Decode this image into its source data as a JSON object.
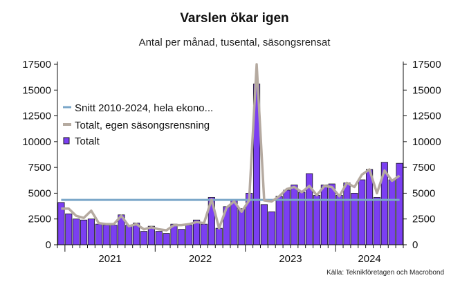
{
  "chart_data": {
    "type": "bar",
    "title": "Varslen ökar igen",
    "subtitle": "Antal per månad, tusental, säsongsrensat",
    "source": "Källa: Teknikföretagen och Macrobond",
    "ylim": [
      0,
      17500
    ],
    "yticks": [
      0,
      2500,
      5000,
      7500,
      10000,
      12500,
      15000,
      17500
    ],
    "ytick_labels": [
      "0",
      "2500",
      "5000",
      "7500",
      "10000",
      "12500",
      "15000",
      "17500"
    ],
    "year_labels": [
      "2021",
      "2022",
      "2023",
      "2024"
    ],
    "years": [
      2021,
      2022,
      2023,
      2024
    ],
    "start": "2020-12",
    "legend": {
      "position": "top-left"
    },
    "colors": {
      "bar": "#7b3ff2",
      "bar_border": "#1a1a1a",
      "average": "#7ba7c9",
      "total_line": "#b5aaa0"
    },
    "series": [
      {
        "name": "Snitt 2010-2024, hela ekono...",
        "type": "line",
        "values": [
          4350,
          4350,
          4350,
          4350,
          4350,
          4350,
          4350,
          4350,
          4350,
          4350,
          4350,
          4350,
          4350,
          4350,
          4350,
          4350,
          4350,
          4350,
          4350,
          4350,
          4350,
          4350,
          4350,
          4350,
          4350,
          4350,
          4350,
          4350,
          4350,
          4350,
          4350,
          4350,
          4350,
          4350,
          4350,
          4350,
          4350,
          4350,
          4350,
          4350,
          4350,
          4350,
          4350,
          4350,
          4350,
          4350,
          4350,
          4350,
          4350,
          4350,
          4350,
          4350,
          4350,
          4350
        ]
      },
      {
        "name": "Totalt, egen säsongsrensning",
        "type": "line",
        "values": [
          3500,
          3500,
          2800,
          2600,
          3300,
          2100,
          2000,
          2000,
          2800,
          1800,
          2000,
          1500,
          1700,
          1500,
          1400,
          1900,
          1900,
          2000,
          2200,
          2100,
          4400,
          1600,
          3600,
          4200,
          3200,
          4300,
          17500,
          4300,
          4200,
          4700,
          5400,
          5600,
          5100,
          5700,
          4800,
          5700,
          5600,
          4700,
          6000,
          5600,
          6800,
          7300,
          5000,
          7200,
          6200,
          6700
        ]
      },
      {
        "name": "Totalt",
        "type": "bar",
        "values": [
          4100,
          3000,
          2500,
          2400,
          2500,
          2000,
          1900,
          1900,
          2900,
          1900,
          2100,
          1300,
          1800,
          1300,
          1100,
          2000,
          1500,
          1900,
          2400,
          2000,
          4600,
          1600,
          3700,
          4300,
          3500,
          5000,
          15600,
          3900,
          3200,
          4700,
          5300,
          5800,
          5100,
          6900,
          4800,
          5800,
          5900,
          4800,
          6000,
          5000,
          6300,
          7300,
          4600,
          8000,
          6300,
          7900
        ]
      }
    ]
  }
}
